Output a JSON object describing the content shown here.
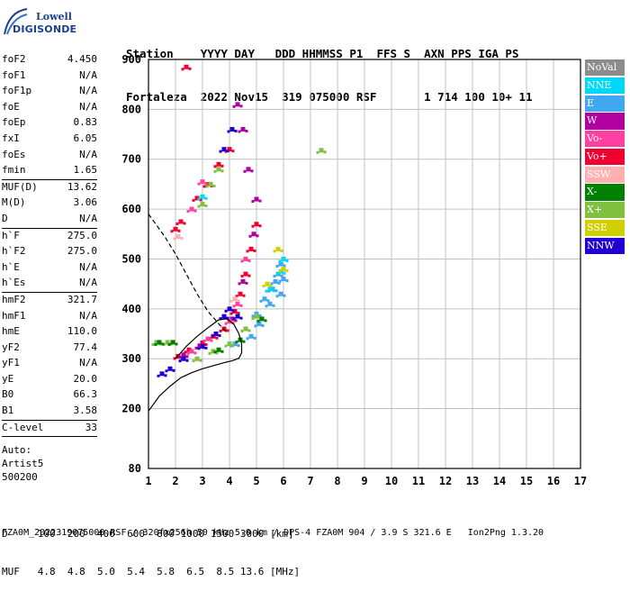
{
  "logo": {
    "line1": "Lowell",
    "line2": "DIGISONDE"
  },
  "header": {
    "labels": "Station    YYYY DAY   DDD HHMMSS P1  FFS S  AXN PPS IGA PS",
    "values": "Fortaleza  2022 Nov15  319 075000 RSF       1 714 100 10+ 11"
  },
  "params": [
    {
      "group": [
        {
          "k": "foF2",
          "v": "4.450"
        },
        {
          "k": "foF1",
          "v": "N/A"
        },
        {
          "k": "foF1p",
          "v": "N/A"
        },
        {
          "k": "foE",
          "v": "N/A"
        },
        {
          "k": "foEp",
          "v": "0.83"
        },
        {
          "k": "fxI",
          "v": "6.05"
        },
        {
          "k": "foEs",
          "v": "N/A"
        },
        {
          "k": "fmin",
          "v": "1.65"
        }
      ]
    },
    {
      "group": [
        {
          "k": "MUF(D)",
          "v": "13.62"
        },
        {
          "k": "M(D)",
          "v": "3.06"
        },
        {
          "k": "D",
          "v": "N/A"
        }
      ]
    },
    {
      "group": [
        {
          "k": "h`F",
          "v": "275.0"
        },
        {
          "k": "h`F2",
          "v": "275.0"
        },
        {
          "k": "h`E",
          "v": "N/A"
        },
        {
          "k": "h`Es",
          "v": "N/A"
        }
      ]
    },
    {
      "group": [
        {
          "k": "hmF2",
          "v": "321.7"
        },
        {
          "k": "hmF1",
          "v": "N/A"
        },
        {
          "k": "hmE",
          "v": "110.0"
        },
        {
          "k": "yF2",
          "v": "77.4"
        },
        {
          "k": "yF1",
          "v": "N/A"
        },
        {
          "k": "yE",
          "v": "20.0"
        },
        {
          "k": "B0",
          "v": "66.3"
        },
        {
          "k": "B1",
          "v": "3.58"
        }
      ]
    },
    {
      "group": [
        {
          "k": "C-level",
          "v": "33"
        }
      ]
    }
  ],
  "autoscaling": {
    "line1": "Auto:",
    "line2": "Artist5",
    "line3": "500200"
  },
  "legend": [
    {
      "label": "NoVal",
      "color": "#8c8c8c"
    },
    {
      "label": "NNE",
      "color": "#00d8f8"
    },
    {
      "label": "E",
      "color": "#40a8f0"
    },
    {
      "label": "W",
      "color": "#b000a0"
    },
    {
      "label": "Vo-",
      "color": "#ff40a0"
    },
    {
      "label": "Vo+",
      "color": "#f00030"
    },
    {
      "label": "SSW",
      "color": "#ffb0b0"
    },
    {
      "label": "X-",
      "color": "#008000"
    },
    {
      "label": "X+",
      "color": "#80c040"
    },
    {
      "label": "SSE",
      "color": "#d0d000"
    },
    {
      "label": "NNW",
      "color": "#2000d0"
    }
  ],
  "footer": {
    "row1": "D     100  200  400  600  800 1000 1500 3000 [km]",
    "row2": "MUF   4.8  4.8  5.0  5.4  5.8  6.5  8.5 13.6 [MHz]",
    "row3": "FZA0M_2022319075000.RSF / 320fx256h 50 kHz 5.0 km / DPS-4 FZA0M 904 / 3.9 S 321.6 E   Ion2Png 1.3.20"
  },
  "chart_data": {
    "type": "scatter",
    "xlim": [
      1,
      17
    ],
    "ylim": [
      80,
      900
    ],
    "x_ticks": [
      1,
      2,
      3,
      4,
      5,
      6,
      7,
      8,
      9,
      10,
      11,
      12,
      13,
      14,
      15,
      16,
      17
    ],
    "y_ticks": [
      80,
      200,
      300,
      400,
      500,
      600,
      700,
      800,
      900
    ],
    "grid": true,
    "legend_position": "right",
    "series": [
      {
        "name": "E",
        "color": "#40a8f0",
        "points": [
          [
            4.2,
            330
          ],
          [
            4.6,
            360
          ],
          [
            5.0,
            390
          ],
          [
            5.3,
            420
          ],
          [
            5.6,
            440
          ],
          [
            5.8,
            470
          ],
          [
            5.9,
            490
          ],
          [
            6.0,
            460
          ],
          [
            5.5,
            410
          ],
          [
            5.1,
            370
          ],
          [
            4.8,
            345
          ],
          [
            5.7,
            455
          ],
          [
            5.9,
            430
          ]
        ]
      },
      {
        "name": "Vo+",
        "color": "#f00030",
        "points": [
          [
            2.1,
            305
          ],
          [
            2.5,
            318
          ],
          [
            3.0,
            332
          ],
          [
            3.4,
            345
          ],
          [
            3.8,
            360
          ],
          [
            4.2,
            395
          ],
          [
            4.4,
            430
          ],
          [
            4.6,
            470
          ],
          [
            4.8,
            520
          ],
          [
            5.0,
            570
          ],
          [
            2.0,
            560
          ],
          [
            2.2,
            575
          ],
          [
            2.8,
            622
          ],
          [
            3.2,
            650
          ],
          [
            3.6,
            690
          ],
          [
            4.0,
            720
          ],
          [
            2.4,
            885
          ]
        ]
      },
      {
        "name": "W",
        "color": "#b000a0",
        "points": [
          [
            2.3,
            308
          ],
          [
            2.9,
            326
          ],
          [
            3.5,
            350
          ],
          [
            4.1,
            380
          ],
          [
            4.5,
            455
          ],
          [
            4.9,
            550
          ],
          [
            5.0,
            620
          ],
          [
            4.7,
            680
          ],
          [
            4.5,
            760
          ],
          [
            4.3,
            810
          ]
        ]
      },
      {
        "name": "Vo-",
        "color": "#ff40a0",
        "points": [
          [
            2.6,
            315
          ],
          [
            3.2,
            340
          ],
          [
            4.0,
            375
          ],
          [
            4.3,
            410
          ],
          [
            4.6,
            500
          ],
          [
            3.0,
            655
          ],
          [
            2.6,
            600
          ]
        ]
      },
      {
        "name": "X+",
        "color": "#80c040",
        "points": [
          [
            2.8,
            300
          ],
          [
            3.4,
            315
          ],
          [
            4.0,
            330
          ],
          [
            4.6,
            360
          ],
          [
            5.0,
            385
          ],
          [
            3.0,
            610
          ],
          [
            3.3,
            650
          ],
          [
            3.6,
            680
          ],
          [
            1.3,
            333
          ],
          [
            1.7,
            333
          ],
          [
            7.4,
            718
          ]
        ]
      },
      {
        "name": "X-",
        "color": "#008000",
        "points": [
          [
            3.6,
            318
          ],
          [
            4.4,
            338
          ],
          [
            5.2,
            380
          ],
          [
            1.4,
            333
          ],
          [
            1.9,
            333
          ]
        ]
      },
      {
        "name": "NNW",
        "color": "#2000d0",
        "points": [
          [
            1.5,
            270
          ],
          [
            1.8,
            280
          ],
          [
            2.3,
            300
          ],
          [
            3.0,
            325
          ],
          [
            3.5,
            350
          ],
          [
            3.8,
            385
          ],
          [
            4.0,
            400
          ],
          [
            4.3,
            385
          ],
          [
            3.8,
            720
          ],
          [
            4.1,
            760
          ]
        ]
      },
      {
        "name": "NNE",
        "color": "#00d8f8",
        "points": [
          [
            5.5,
            440
          ],
          [
            5.9,
            475
          ],
          [
            6.0,
            500
          ],
          [
            3.0,
            625
          ]
        ]
      },
      {
        "name": "SSE",
        "color": "#d0d000",
        "points": [
          [
            6.0,
            480
          ],
          [
            5.8,
            520
          ],
          [
            5.4,
            450
          ]
        ]
      },
      {
        "name": "SSW",
        "color": "#ffb0b0",
        "points": [
          [
            4.2,
            420
          ],
          [
            2.1,
            545
          ]
        ]
      }
    ],
    "profile_curve": {
      "name": "electron density profile",
      "points": [
        [
          1.0,
          195
        ],
        [
          1.4,
          225
        ],
        [
          1.8,
          245
        ],
        [
          2.2,
          262
        ],
        [
          2.6,
          272
        ],
        [
          3.0,
          280
        ],
        [
          3.4,
          286
        ],
        [
          3.8,
          292
        ],
        [
          4.1,
          296
        ],
        [
          4.35,
          301
        ],
        [
          4.45,
          312
        ],
        [
          4.45,
          330
        ],
        [
          4.35,
          350
        ],
        [
          4.15,
          370
        ],
        [
          3.9,
          380
        ],
        [
          3.6,
          378
        ],
        [
          3.2,
          362
        ],
        [
          2.8,
          345
        ],
        [
          2.4,
          325
        ],
        [
          2.0,
          300
        ]
      ]
    },
    "muf_curve": {
      "name": "MUF curve",
      "points": [
        [
          1.0,
          590
        ],
        [
          1.6,
          545
        ],
        [
          2.0,
          510
        ],
        [
          2.4,
          470
        ],
        [
          2.8,
          430
        ],
        [
          3.2,
          395
        ],
        [
          3.6,
          370
        ],
        [
          3.9,
          352
        ]
      ]
    }
  }
}
